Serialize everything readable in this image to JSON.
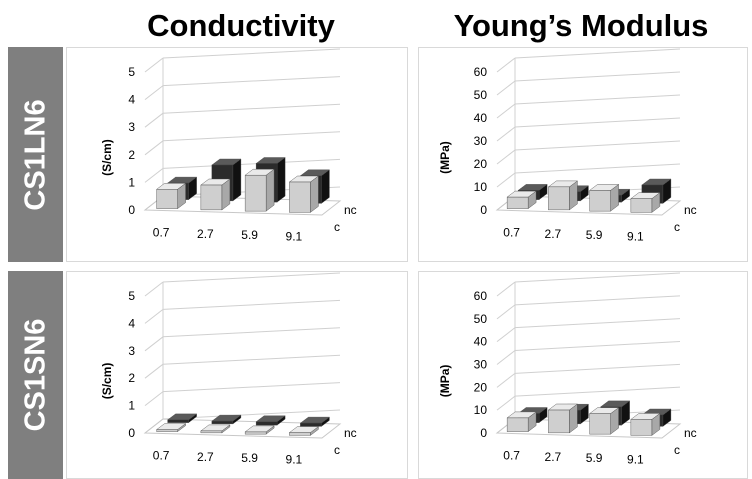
{
  "columns": [
    {
      "title": "Conductivity"
    },
    {
      "title": "Young’s Modulus"
    }
  ],
  "rows": [
    {
      "label": "CS1LN6"
    },
    {
      "label": "CS1SN6"
    }
  ],
  "colors": {
    "c_front": "#cfcfcf",
    "c_top": "#eaeaea",
    "c_side": "#a8a8a8",
    "nc_front": "#2b2b2b",
    "nc_top": "#5a5a5a",
    "nc_side": "#111111",
    "band": "#7f7f7f"
  },
  "chart_data": [
    {
      "type": "bar",
      "variant": "3d-grouped",
      "ylabel": "(S/cm)",
      "ylim": [
        0,
        5
      ],
      "yticks": [
        "0",
        "1",
        "2",
        "3",
        "4",
        "5"
      ],
      "categories": [
        "0.7",
        "2.7",
        "5.9",
        "9.1"
      ],
      "series": [
        {
          "name": "c",
          "values": [
            0.7,
            0.9,
            1.3,
            1.1
          ]
        },
        {
          "name": "nc",
          "values": [
            0.6,
            1.3,
            1.4,
            1.0
          ]
        }
      ],
      "grid": true
    },
    {
      "type": "bar",
      "variant": "3d-grouped",
      "ylabel": "(MPa)",
      "ylim": [
        0,
        60
      ],
      "yticks": [
        "0",
        "10",
        "20",
        "30",
        "40",
        "50",
        "60"
      ],
      "categories": [
        "0.7",
        "2.7",
        "5.9",
        "9.1"
      ],
      "series": [
        {
          "name": "c",
          "values": [
            5,
            10,
            9,
            6
          ]
        },
        {
          "name": "nc",
          "values": [
            4,
            4,
            3,
            8
          ]
        }
      ],
      "grid": true
    },
    {
      "type": "bar",
      "variant": "3d-grouped",
      "ylabel": "(S/cm)",
      "ylim": [
        0,
        5
      ],
      "yticks": [
        "0",
        "1",
        "2",
        "3",
        "4",
        "5"
      ],
      "categories": [
        "0.7",
        "2.7",
        "5.9",
        "9.1"
      ],
      "series": [
        {
          "name": "c",
          "values": [
            0.05,
            0.05,
            0.08,
            0.1
          ]
        },
        {
          "name": "nc",
          "values": [
            0.1,
            0.1,
            0.12,
            0.12
          ]
        }
      ],
      "grid": true
    },
    {
      "type": "bar",
      "variant": "3d-grouped",
      "ylabel": "(MPa)",
      "ylim": [
        0,
        60
      ],
      "yticks": [
        "0",
        "10",
        "20",
        "30",
        "40",
        "50",
        "60"
      ],
      "categories": [
        "0.7",
        "2.7",
        "5.9",
        "9.1"
      ],
      "series": [
        {
          "name": "c",
          "values": [
            6,
            10,
            9,
            7
          ]
        },
        {
          "name": "nc",
          "values": [
            4,
            6,
            8,
            5
          ]
        }
      ],
      "grid": true
    }
  ]
}
